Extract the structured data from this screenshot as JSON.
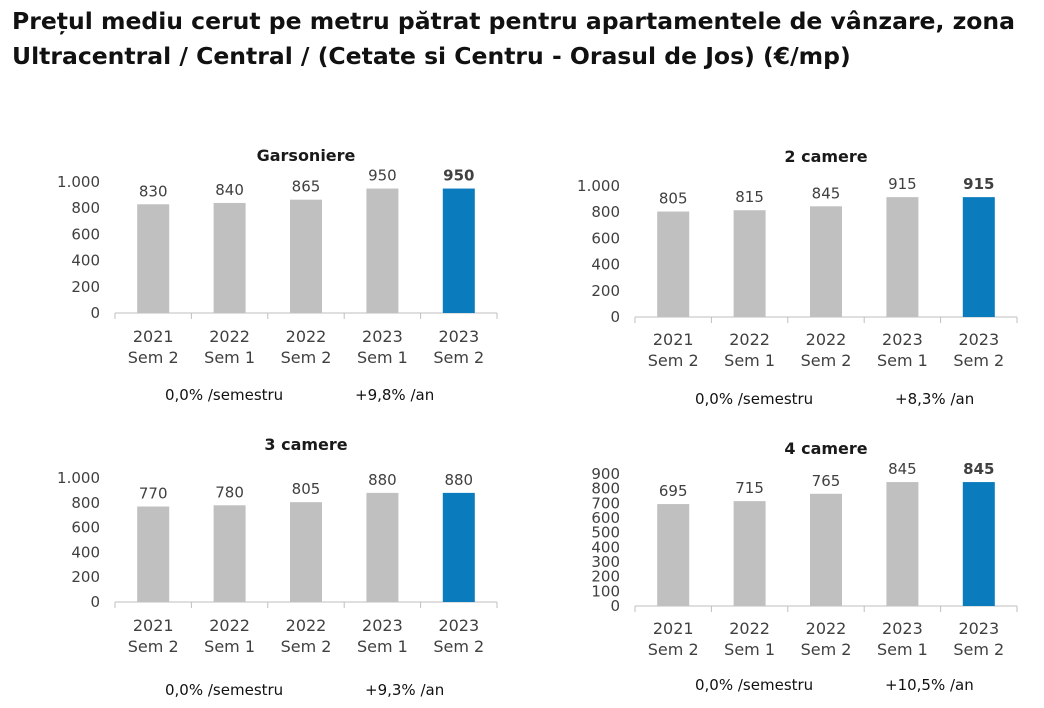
{
  "title": {
    "line1": "Prețul mediu cerut pe metru pătrat pentru apartamentele de vânzare, zona",
    "line2": "Ultracentral / Central / (Cetate si Centru - Orasul de Jos) (€/mp)"
  },
  "colors": {
    "bar": "#c0c0c0",
    "highlight": "#0a7cbd",
    "axis": "#bfbfbf",
    "grid": "#d9d9d9"
  },
  "chart_data": [
    {
      "type": "bar",
      "title": "Garsoniere",
      "categories": [
        [
          "2021",
          "Sem 2"
        ],
        [
          "2022",
          "Sem 1"
        ],
        [
          "2022",
          "Sem 2"
        ],
        [
          "2023",
          "Sem 1"
        ],
        [
          "2023",
          "Sem 2"
        ]
      ],
      "values": [
        830,
        840,
        865,
        950,
        950
      ],
      "value_labels": [
        "830",
        "840",
        "865",
        "950",
        "950"
      ],
      "ylim": [
        0,
        1000
      ],
      "yticks": [
        0,
        200,
        400,
        600,
        800,
        1000
      ],
      "ytick_labels": [
        "0",
        "200",
        "400",
        "600",
        "800",
        "1.000"
      ],
      "highlight_index": 4,
      "bold_label_index": 4,
      "growth": [
        "0,0% /semestru",
        "+9,8% /an"
      ]
    },
    {
      "type": "bar",
      "title": "2 camere",
      "categories": [
        [
          "2021",
          "Sem 2"
        ],
        [
          "2022",
          "Sem 1"
        ],
        [
          "2022",
          "Sem 2"
        ],
        [
          "2023",
          "Sem 1"
        ],
        [
          "2023",
          "Sem 2"
        ]
      ],
      "values": [
        805,
        815,
        845,
        915,
        915
      ],
      "value_labels": [
        "805",
        "815",
        "845",
        "915",
        "915"
      ],
      "ylim": [
        0,
        1000
      ],
      "yticks": [
        0,
        200,
        400,
        600,
        800,
        1000
      ],
      "ytick_labels": [
        "0",
        "200",
        "400",
        "600",
        "800",
        "1.000"
      ],
      "highlight_index": 4,
      "bold_label_index": 4,
      "growth": [
        "0,0% /semestru",
        "+8,3% /an"
      ]
    },
    {
      "type": "bar",
      "title": "3 camere",
      "categories": [
        [
          "2021",
          "Sem 2"
        ],
        [
          "2022",
          "Sem 1"
        ],
        [
          "2022",
          "Sem 2"
        ],
        [
          "2023",
          "Sem 1"
        ],
        [
          "2023",
          "Sem 2"
        ]
      ],
      "values": [
        770,
        780,
        805,
        880,
        880
      ],
      "value_labels": [
        "770",
        "780",
        "805",
        "880",
        "880"
      ],
      "ylim": [
        0,
        1000
      ],
      "yticks": [
        0,
        200,
        400,
        600,
        800,
        1000
      ],
      "ytick_labels": [
        "0",
        "200",
        "400",
        "600",
        "800",
        "1.000"
      ],
      "highlight_index": 4,
      "bold_label_index": -1,
      "growth": [
        "0,0% /semestru",
        "+9,3% /an"
      ]
    },
    {
      "type": "bar",
      "title": "4 camere",
      "categories": [
        [
          "2021",
          "Sem 2"
        ],
        [
          "2022",
          "Sem 1"
        ],
        [
          "2022",
          "Sem 2"
        ],
        [
          "2023",
          "Sem 1"
        ],
        [
          "2023",
          "Sem 2"
        ]
      ],
      "values": [
        695,
        715,
        765,
        845,
        845
      ],
      "value_labels": [
        "695",
        "715",
        "765",
        "845",
        "845"
      ],
      "ylim": [
        0,
        900
      ],
      "yticks": [
        0,
        100,
        200,
        300,
        400,
        500,
        600,
        700,
        800,
        900
      ],
      "ytick_labels": [
        "0",
        "100",
        "200",
        "300",
        "400",
        "500",
        "600",
        "700",
        "800",
        "900"
      ],
      "highlight_index": 4,
      "bold_label_index": 4,
      "growth": [
        "0,0% /semestru",
        "+10,5% /an"
      ]
    }
  ]
}
